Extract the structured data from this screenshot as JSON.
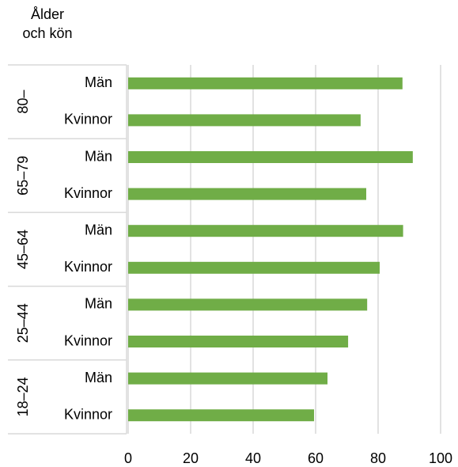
{
  "chart_data": {
    "type": "bar",
    "orientation": "horizontal",
    "y_label": "Ålder och kön",
    "groups": [
      "80–",
      "65–79",
      "45–64",
      "25–44",
      "18–24"
    ],
    "categories": [
      "Män",
      "Kvinnor",
      "Män",
      "Kvinnor",
      "Män",
      "Kvinnor",
      "Män",
      "Kvinnor",
      "Män",
      "Kvinnor"
    ],
    "values": [
      87.8,
      74.4,
      91.1,
      76.2,
      88,
      80.5,
      76.5,
      70.4,
      63.8,
      59.5
    ],
    "color": "#70ad47",
    "xlim": [
      0,
      100
    ],
    "xticks": [
      0,
      20,
      40,
      60,
      80,
      100
    ],
    "grid": true
  }
}
